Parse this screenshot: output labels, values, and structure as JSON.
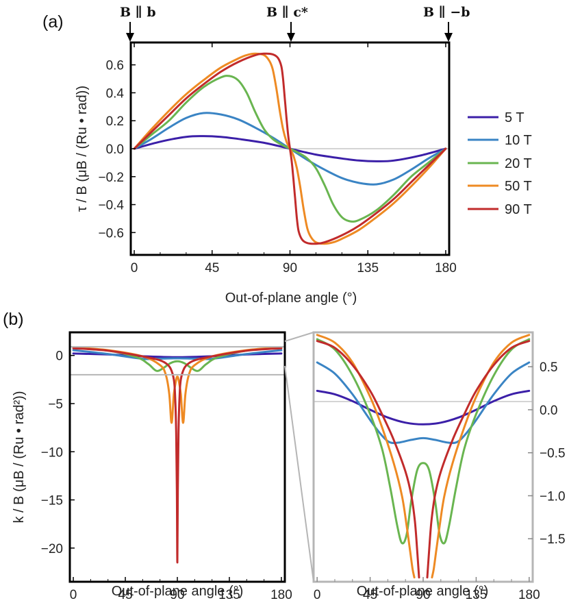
{
  "panels": {
    "a": "(a)",
    "b": "(b)"
  },
  "colors": {
    "5 T": "#3b1fa8",
    "10 T": "#3a84c4",
    "20 T": "#69b550",
    "50 T": "#ee8a23",
    "90 T": "#c12b2b",
    "frame": "#000000",
    "inset_frame": "#b5b5b5",
    "zero_line": "#a8a8a8"
  },
  "chart_data": [
    {
      "id": "a",
      "type": "line",
      "xlabel": "Out-of-plane angle (°)",
      "ylabel": "τ / B (μB / (Ru • rad))",
      "xlim": [
        -2,
        182
      ],
      "ylim": [
        -0.76,
        0.76
      ],
      "xticks": [
        0,
        45,
        90,
        135,
        180
      ],
      "yticks": [
        -0.6,
        -0.4,
        -0.2,
        0.0,
        0.2,
        0.4,
        0.6
      ],
      "ytick_labels": [
        "−0.6",
        "−0.4",
        "−0.2",
        "0.0",
        "0.2",
        "0.4",
        "0.6"
      ],
      "top_markers": [
        {
          "x": 0,
          "text": "B ∥ b"
        },
        {
          "x": 90,
          "text": "B ∥ c*"
        },
        {
          "x": 180,
          "text": "B ∥ −b"
        }
      ],
      "legend": [
        "5 T",
        "10 T",
        "20 T",
        "50 T",
        "90 T"
      ],
      "series": [
        {
          "name": "5 T",
          "x": [
            0,
            15,
            30,
            40,
            50,
            60,
            75,
            90,
            105,
            120,
            130,
            140,
            150,
            165,
            180
          ],
          "y": [
            0,
            0.05,
            0.085,
            0.09,
            0.085,
            0.07,
            0.042,
            0,
            -0.042,
            -0.07,
            -0.085,
            -0.09,
            -0.085,
            -0.05,
            0
          ]
        },
        {
          "name": "10 T",
          "x": [
            0,
            10,
            20,
            30,
            40,
            50,
            60,
            70,
            80,
            90,
            100,
            110,
            120,
            130,
            140,
            150,
            160,
            170,
            180
          ],
          "y": [
            0,
            0.07,
            0.15,
            0.22,
            0.255,
            0.245,
            0.21,
            0.15,
            0.08,
            0,
            -0.08,
            -0.15,
            -0.21,
            -0.245,
            -0.255,
            -0.22,
            -0.15,
            -0.07,
            0
          ]
        },
        {
          "name": "20 T",
          "x": [
            0,
            10,
            20,
            30,
            40,
            50,
            55,
            60,
            65,
            70,
            75,
            80,
            85,
            90,
            95,
            100,
            105,
            110,
            115,
            120,
            125,
            130,
            140,
            150,
            160,
            170,
            180
          ],
          "y": [
            0,
            0.1,
            0.2,
            0.33,
            0.44,
            0.51,
            0.52,
            0.49,
            0.4,
            0.26,
            0.14,
            0.07,
            0.03,
            0,
            -0.03,
            -0.07,
            -0.14,
            -0.26,
            -0.4,
            -0.49,
            -0.52,
            -0.51,
            -0.44,
            -0.33,
            -0.2,
            -0.1,
            0
          ]
        },
        {
          "name": "50 T",
          "x": [
            0,
            10,
            20,
            30,
            40,
            50,
            60,
            65,
            70,
            75,
            78,
            80,
            82,
            84,
            86,
            88,
            90,
            92,
            94,
            96,
            98,
            100,
            102,
            105,
            110,
            115,
            120,
            130,
            140,
            150,
            160,
            170,
            180
          ],
          "y": [
            0,
            0.14,
            0.27,
            0.39,
            0.49,
            0.58,
            0.645,
            0.67,
            0.68,
            0.67,
            0.63,
            0.57,
            0.44,
            0.28,
            0.14,
            0.05,
            0,
            -0.05,
            -0.14,
            -0.28,
            -0.44,
            -0.57,
            -0.63,
            -0.67,
            -0.68,
            -0.67,
            -0.645,
            -0.58,
            -0.49,
            -0.39,
            -0.27,
            -0.14,
            0
          ]
        },
        {
          "name": "90 T",
          "x": [
            0,
            10,
            20,
            30,
            40,
            50,
            60,
            70,
            75,
            80,
            83,
            85,
            86,
            87,
            88,
            89,
            90,
            91,
            92,
            93,
            94,
            95,
            97,
            100,
            105,
            110,
            120,
            130,
            140,
            150,
            160,
            170,
            180
          ],
          "y": [
            0,
            0.12,
            0.24,
            0.36,
            0.46,
            0.55,
            0.62,
            0.67,
            0.68,
            0.675,
            0.65,
            0.59,
            0.5,
            0.36,
            0.22,
            0.09,
            0,
            -0.09,
            -0.22,
            -0.36,
            -0.5,
            -0.59,
            -0.65,
            -0.675,
            -0.68,
            -0.67,
            -0.62,
            -0.55,
            -0.46,
            -0.36,
            -0.24,
            -0.12,
            0
          ]
        }
      ]
    },
    {
      "id": "b-main",
      "type": "line",
      "xlabel": "Out-of-plane angle (°)",
      "ylabel": "k / B (μB / (Ru • rad²))",
      "xlim": [
        -3,
        183
      ],
      "ylim": [
        -23.5,
        2.4
      ],
      "xticks": [
        0,
        45,
        90,
        135,
        180
      ],
      "yticks": [
        0,
        -5,
        -10,
        -15,
        -20
      ],
      "ytick_labels": [
        "0",
        "−5",
        "−10",
        "−15",
        "−20"
      ],
      "zoom_band": [
        -2.0,
        0.9
      ],
      "series": [
        {
          "name": "5 T",
          "x": [
            0,
            30,
            60,
            90,
            120,
            150,
            180
          ],
          "y": [
            0.2,
            0.1,
            -0.08,
            -0.18,
            -0.08,
            0.1,
            0.2
          ]
        },
        {
          "name": "10 T",
          "x": [
            0,
            30,
            60,
            75,
            90,
            105,
            120,
            150,
            180
          ],
          "y": [
            0.55,
            0.15,
            -0.35,
            -0.33,
            -0.3,
            -0.33,
            -0.35,
            0.15,
            0.55
          ]
        },
        {
          "name": "20 T",
          "x": [
            0,
            30,
            55,
            65,
            72,
            78,
            84,
            90,
            96,
            102,
            108,
            115,
            125,
            150,
            180
          ],
          "y": [
            0.8,
            0.5,
            -0.2,
            -0.9,
            -1.6,
            -1.3,
            -0.8,
            -0.6,
            -0.8,
            -1.3,
            -1.6,
            -0.9,
            -0.2,
            0.5,
            0.8
          ]
        },
        {
          "name": "50 T",
          "x": [
            0,
            30,
            60,
            75,
            80,
            83,
            85,
            87,
            89,
            90,
            91,
            93,
            95,
            97,
            100,
            105,
            120,
            150,
            180
          ],
          "y": [
            0.85,
            0.55,
            -0.1,
            -1.0,
            -2.0,
            -4.0,
            -7.0,
            -4.0,
            -2.5,
            -2.2,
            -2.5,
            -4.0,
            -7.0,
            -4.0,
            -2.0,
            -1.0,
            -0.1,
            0.55,
            0.85
          ]
        },
        {
          "name": "90 T",
          "x": [
            0,
            30,
            60,
            75,
            82,
            85,
            87,
            88,
            89,
            89.6,
            90,
            90.4,
            91,
            92,
            93,
            95,
            98,
            105,
            120,
            150,
            180
          ],
          "y": [
            0.75,
            0.5,
            -0.1,
            -0.5,
            -1.0,
            -1.6,
            -2.5,
            -4.0,
            -8.0,
            -14.0,
            -21.5,
            -14.0,
            -8.0,
            -4.0,
            -2.5,
            -1.6,
            -1.0,
            -0.5,
            -0.1,
            0.5,
            0.75
          ]
        }
      ]
    },
    {
      "id": "b-zoom",
      "type": "line",
      "xlabel": "Out-of-plane angle (°)",
      "ylabel": "",
      "xlim": [
        -3,
        183
      ],
      "ylim": [
        -2.0,
        0.9
      ],
      "xticks": [
        0,
        45,
        90,
        135,
        180
      ],
      "yticks": [
        0.5,
        0.0,
        -0.5,
        -1.0,
        -1.5
      ],
      "ytick_labels": [
        "0.5",
        "0.0",
        "−0.5",
        "−1.0",
        "−1.5"
      ],
      "series": [
        {
          "name": "5 T",
          "x": [
            0,
            15,
            30,
            45,
            60,
            75,
            90,
            105,
            120,
            135,
            150,
            165,
            180
          ],
          "y": [
            0.22,
            0.18,
            0.1,
            0.0,
            -0.09,
            -0.15,
            -0.17,
            -0.15,
            -0.09,
            0.0,
            0.1,
            0.18,
            0.22
          ]
        },
        {
          "name": "10 T",
          "x": [
            0,
            15,
            30,
            45,
            55,
            62,
            70,
            80,
            90,
            100,
            110,
            118,
            125,
            135,
            150,
            165,
            180
          ],
          "y": [
            0.55,
            0.42,
            0.18,
            -0.12,
            -0.3,
            -0.38,
            -0.38,
            -0.35,
            -0.33,
            -0.35,
            -0.38,
            -0.38,
            -0.3,
            -0.12,
            0.18,
            0.42,
            0.55
          ]
        },
        {
          "name": "20 T",
          "x": [
            0,
            15,
            30,
            45,
            55,
            62,
            68,
            72,
            76,
            80,
            85,
            90,
            95,
            100,
            104,
            108,
            112,
            118,
            125,
            135,
            150,
            165,
            180
          ],
          "y": [
            0.82,
            0.7,
            0.4,
            -0.05,
            -0.45,
            -0.9,
            -1.35,
            -1.55,
            -1.45,
            -1.05,
            -0.7,
            -0.62,
            -0.7,
            -1.05,
            -1.45,
            -1.55,
            -1.35,
            -0.9,
            -0.45,
            -0.05,
            0.4,
            0.7,
            0.82
          ]
        },
        {
          "name": "50 T",
          "x": [
            0,
            15,
            30,
            45,
            55,
            65,
            72,
            76,
            79,
            81,
            82.5
          ],
          "y": [
            0.87,
            0.78,
            0.55,
            0.15,
            -0.2,
            -0.62,
            -1.0,
            -1.35,
            -1.65,
            -1.85,
            -1.95
          ]
        },
        {
          "name": "50 T",
          "x": [
            97.5,
            99,
            101,
            104,
            108,
            115,
            125,
            135,
            150,
            165,
            180
          ],
          "y": [
            -1.95,
            -1.85,
            -1.65,
            -1.35,
            -1.0,
            -0.62,
            -0.2,
            0.15,
            0.55,
            0.78,
            0.87
          ]
        },
        {
          "name": "90 T",
          "x": [
            0,
            15,
            30,
            45,
            55,
            65,
            75,
            80,
            83,
            85,
            86.5
          ],
          "y": [
            0.8,
            0.72,
            0.52,
            0.22,
            -0.05,
            -0.35,
            -0.72,
            -1.0,
            -1.3,
            -1.65,
            -1.95
          ]
        },
        {
          "name": "90 T",
          "x": [
            93.5,
            95,
            97,
            100,
            105,
            115,
            125,
            135,
            150,
            165,
            180
          ],
          "y": [
            -1.95,
            -1.65,
            -1.3,
            -1.0,
            -0.72,
            -0.35,
            -0.05,
            0.22,
            0.52,
            0.72,
            0.8
          ]
        }
      ]
    }
  ]
}
